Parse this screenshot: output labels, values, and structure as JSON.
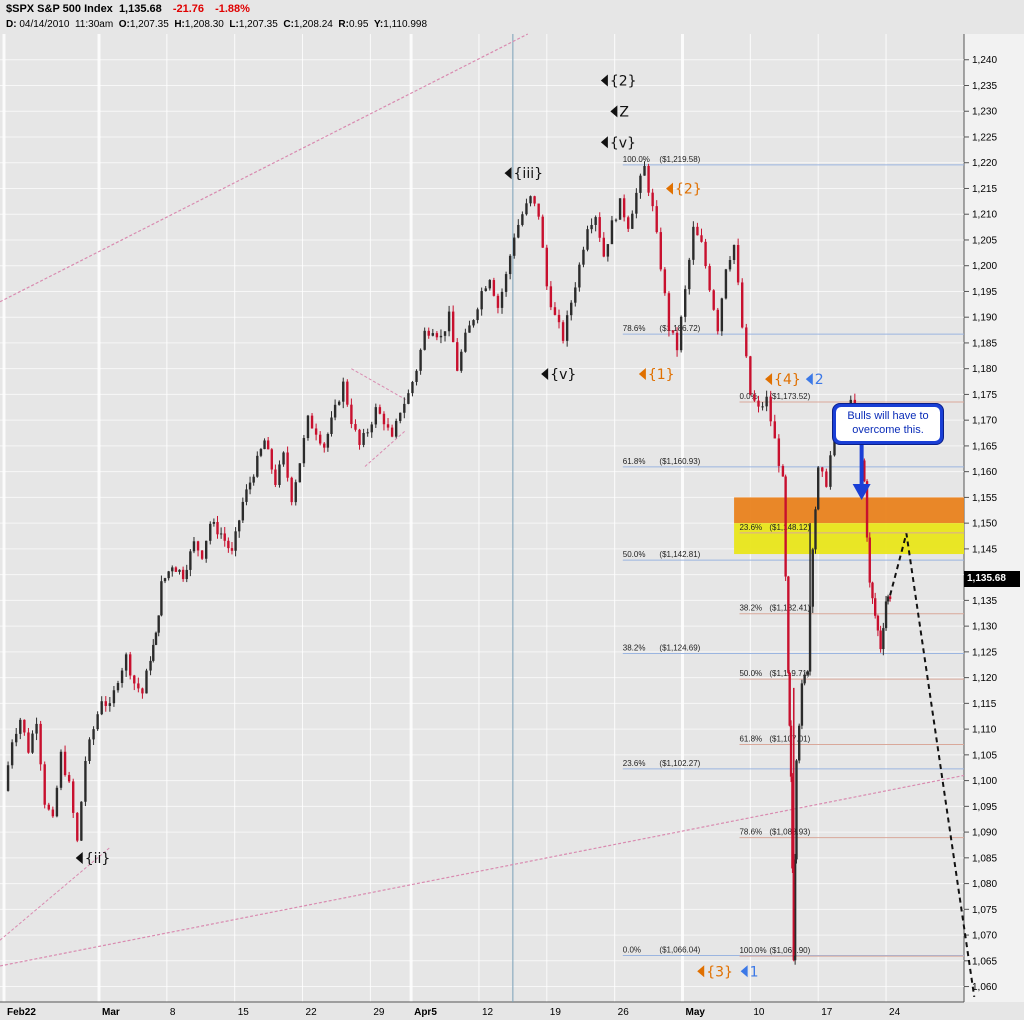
{
  "header": {
    "symbol": "$SPX S&P 500 Index",
    "last": "1,135.68",
    "change": "-21.76",
    "change_pct": "-1.88%",
    "detail_date": "04/14/2010",
    "detail_time": "11:30am",
    "detail_open": "1,207.35",
    "detail_high": "1,208.30",
    "detail_low": "1,207.35",
    "detail_close": "1,208.24",
    "detail_r": "0.95",
    "detail_y": "1,110.998"
  },
  "price_tag": "1,135.68",
  "note": {
    "line1": "Bulls will have to",
    "line2": "overcome this."
  },
  "chart_data": {
    "type": "candlestick",
    "ylim": [
      1057,
      1245
    ],
    "y_ticks": [
      "1,060",
      "1,065",
      "1,070",
      "1,075",
      "1,080",
      "1,085",
      "1,090",
      "1,095",
      "1,100",
      "1,105",
      "1,110",
      "1,115",
      "1,120",
      "1,125",
      "1,130",
      "1,135",
      "1,140",
      "1,145",
      "1,150",
      "1,155",
      "1,160",
      "1,165",
      "1,170",
      "1,175",
      "1,180",
      "1,185",
      "1,190",
      "1,195",
      "1,200",
      "1,205",
      "1,210",
      "1,215",
      "1,220",
      "1,225",
      "1,230",
      "1,235",
      "1,240"
    ],
    "x_ticks": [
      {
        "label": "Feb22",
        "bold": true
      },
      {
        "label": "Mar",
        "bold": true
      },
      {
        "label": "8",
        "bold": false
      },
      {
        "label": "15",
        "bold": false
      },
      {
        "label": "22",
        "bold": false
      },
      {
        "label": "29",
        "bold": false
      },
      {
        "label": "Apr5",
        "bold": true
      },
      {
        "label": "12",
        "bold": false
      },
      {
        "label": "19",
        "bold": false
      },
      {
        "label": "26",
        "bold": false
      },
      {
        "label": "May",
        "bold": true
      },
      {
        "label": "10",
        "bold": false
      },
      {
        "label": "17",
        "bold": false
      },
      {
        "label": "24",
        "bold": false
      }
    ],
    "price_path": [
      [
        0,
        1098
      ],
      [
        0.6,
        1108
      ],
      [
        1.2,
        1112
      ],
      [
        1.8,
        1106
      ],
      [
        2.4,
        1112
      ],
      [
        3.0,
        1096
      ],
      [
        3.6,
        1092
      ],
      [
        4.2,
        1105
      ],
      [
        4.8,
        1099
      ],
      [
        5.4,
        1088
      ],
      [
        6.0,
        1104
      ],
      [
        6.6,
        1110
      ],
      [
        7.2,
        1116
      ],
      [
        7.8,
        1114
      ],
      [
        8.4,
        1120
      ],
      [
        9.0,
        1124
      ],
      [
        9.6,
        1119
      ],
      [
        10.2,
        1117
      ],
      [
        10.8,
        1124
      ],
      [
        11.2,
        1128
      ],
      [
        11.6,
        1138
      ],
      [
        12.4,
        1142
      ],
      [
        13.2,
        1140
      ],
      [
        14.0,
        1146
      ],
      [
        14.6,
        1144
      ],
      [
        15.2,
        1150
      ],
      [
        16.0,
        1148
      ],
      [
        16.8,
        1144
      ],
      [
        17.6,
        1154
      ],
      [
        18.4,
        1160
      ],
      [
        19.2,
        1166
      ],
      [
        20.0,
        1158
      ],
      [
        20.6,
        1163
      ],
      [
        21.2,
        1155
      ],
      [
        21.8,
        1162
      ],
      [
        22.4,
        1170
      ],
      [
        23.0,
        1168
      ],
      [
        23.6,
        1165
      ],
      [
        24.4,
        1172
      ],
      [
        25.0,
        1177
      ],
      [
        25.6,
        1170
      ],
      [
        26.2,
        1165
      ],
      [
        26.8,
        1168
      ],
      [
        27.4,
        1172
      ],
      [
        28.0,
        1170
      ],
      [
        28.6,
        1166
      ],
      [
        29.2,
        1172
      ],
      [
        29.8,
        1175
      ],
      [
        30.4,
        1180
      ],
      [
        31.0,
        1187
      ],
      [
        31.6,
        1188
      ],
      [
        32.2,
        1186
      ],
      [
        32.8,
        1190
      ],
      [
        33.4,
        1180
      ],
      [
        34.0,
        1186
      ],
      [
        34.6,
        1190
      ],
      [
        35.2,
        1195
      ],
      [
        35.8,
        1198
      ],
      [
        36.4,
        1192
      ],
      [
        37.0,
        1198
      ],
      [
        37.6,
        1206
      ],
      [
        38.2,
        1210
      ],
      [
        38.8,
        1213
      ],
      [
        39.4,
        1210
      ],
      [
        40.0,
        1196
      ],
      [
        40.6,
        1190
      ],
      [
        41.2,
        1186
      ],
      [
        41.8,
        1193
      ],
      [
        42.4,
        1200
      ],
      [
        43.0,
        1208
      ],
      [
        43.6,
        1210
      ],
      [
        44.2,
        1202
      ],
      [
        44.8,
        1208
      ],
      [
        45.4,
        1212
      ],
      [
        46.0,
        1208
      ],
      [
        46.6,
        1214
      ],
      [
        47.2,
        1219
      ],
      [
        47.8,
        1211
      ],
      [
        48.4,
        1200
      ],
      [
        49.0,
        1188
      ],
      [
        49.6,
        1184
      ],
      [
        50.2,
        1195
      ],
      [
        50.8,
        1207
      ],
      [
        51.4,
        1204
      ],
      [
        52.0,
        1196
      ],
      [
        52.6,
        1188
      ],
      [
        53.2,
        1200
      ],
      [
        53.8,
        1204
      ],
      [
        54.4,
        1188
      ],
      [
        55.0,
        1175
      ],
      [
        55.6,
        1172
      ],
      [
        56.2,
        1174
      ],
      [
        56.8,
        1166
      ],
      [
        57.4,
        1158
      ],
      [
        57.8,
        1120
      ],
      [
        58.0,
        1100
      ],
      [
        58.2,
        1066
      ],
      [
        58.4,
        1105
      ],
      [
        58.8,
        1118
      ],
      [
        59.2,
        1122
      ],
      [
        59.6,
        1146
      ],
      [
        60.0,
        1160
      ],
      [
        60.6,
        1158
      ],
      [
        61.2,
        1168
      ],
      [
        61.8,
        1170
      ],
      [
        62.4,
        1173
      ],
      [
        63.0,
        1166
      ],
      [
        63.4,
        1158
      ],
      [
        63.8,
        1138
      ],
      [
        64.2,
        1132
      ],
      [
        64.6,
        1126
      ],
      [
        65.0,
        1135
      ],
      [
        65.3,
        1136
      ]
    ],
    "projection": [
      [
        65.3,
        1136
      ],
      [
        66.5,
        1148
      ],
      [
        71.5,
        1058
      ]
    ],
    "fib_retracement_upper": [
      {
        "label": "100.0%",
        "value": "($1,219.58)"
      },
      {
        "label": "78.6%",
        "value": "($1,186.72)"
      },
      {
        "label": "61.8%",
        "value": "($1,160.93)"
      },
      {
        "label": "50.0%",
        "value": "($1,142.81)"
      },
      {
        "label": "38.2%",
        "value": "($1,124.69)"
      },
      {
        "label": "23.6%",
        "value": "($1,102.27)"
      },
      {
        "label": "0.0%",
        "value": "($1,066.04)"
      }
    ],
    "fib_retracement_lower": [
      {
        "label": "0.0%",
        "value": "($1,173.52)"
      },
      {
        "label": "23.6%",
        "value": "($1,148.12)"
      },
      {
        "label": "38.2%",
        "value": "($1,132.41)"
      },
      {
        "label": "50.0%",
        "value": "($1,119.71)"
      },
      {
        "label": "61.8%",
        "value": "($1,107.01)"
      },
      {
        "label": "78.6%",
        "value": "($1,088.93)"
      },
      {
        "label": "100.0%",
        "value": "($1,065.90)"
      }
    ],
    "zones": [
      {
        "name": "orange",
        "range": [
          1150,
          1155
        ],
        "color": "#e9821e"
      },
      {
        "name": "yellow",
        "range": [
          1144,
          1150
        ],
        "color": "#e9e61a"
      }
    ],
    "wave_labels": [
      {
        "text": "{2}",
        "color": "#111111"
      },
      {
        "text": "Z",
        "color": "#111111"
      },
      {
        "text": "{v}",
        "color": "#111111"
      },
      {
        "text": "{iii}",
        "color": "#111111"
      },
      {
        "text": "{v}",
        "color": "#111111"
      },
      {
        "text": "{ii}",
        "color": "#111111"
      },
      {
        "text": "{2}",
        "color": "#e07000"
      },
      {
        "text": "{1}",
        "color": "#e07000"
      },
      {
        "text": "{4}",
        "color": "#e07000"
      },
      {
        "text": "2",
        "color": "#3b78e7"
      },
      {
        "text": "{3}",
        "color": "#e07000"
      },
      {
        "text": "1",
        "color": "#3b78e7"
      }
    ],
    "colors": {
      "up": "#2b2b2b",
      "down": "#c8102e",
      "trend": "#d98bb0",
      "fib_line": "#9bb5e0",
      "fib_line_lower": "#d9a89a"
    }
  }
}
